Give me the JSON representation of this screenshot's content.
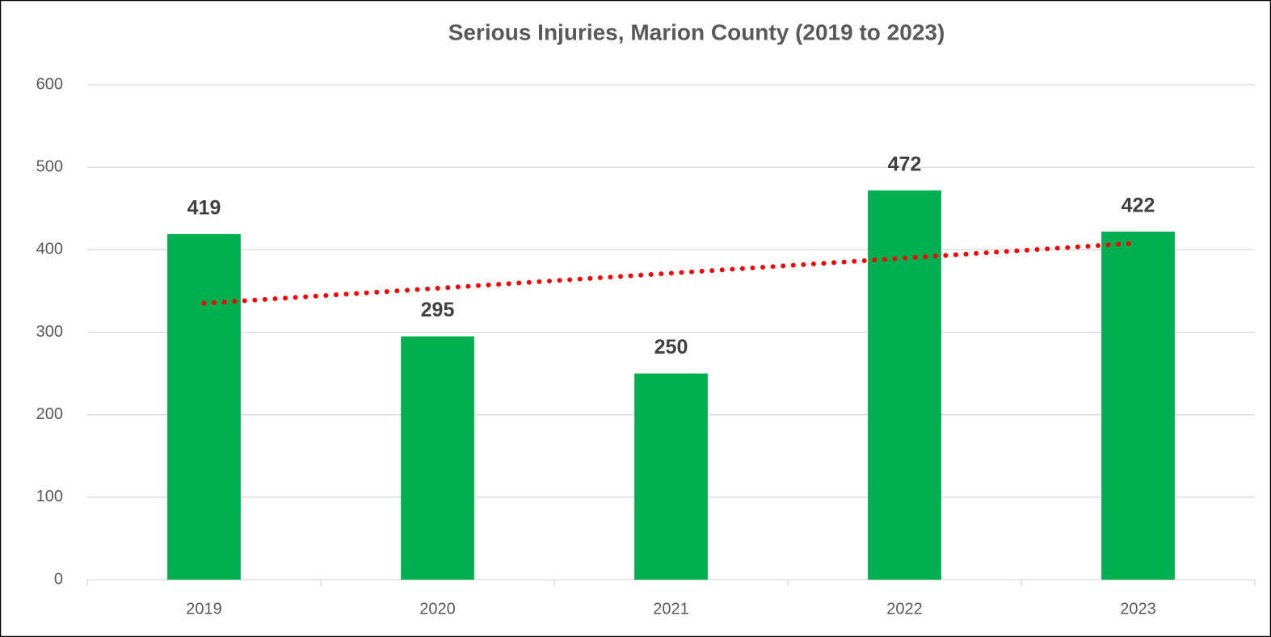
{
  "chart_data": {
    "type": "bar",
    "title": "Serious Injuries, Marion County (2019 to 2023)",
    "categories": [
      "2019",
      "2020",
      "2021",
      "2022",
      "2023"
    ],
    "values": [
      419,
      295,
      250,
      472,
      422
    ],
    "color": "#00b050",
    "ylim": [
      0,
      600
    ],
    "yticks": [
      0,
      100,
      200,
      300,
      400,
      500,
      600
    ],
    "grid": true,
    "trendline": {
      "kind": "linear",
      "color": "#ff0000"
    }
  }
}
